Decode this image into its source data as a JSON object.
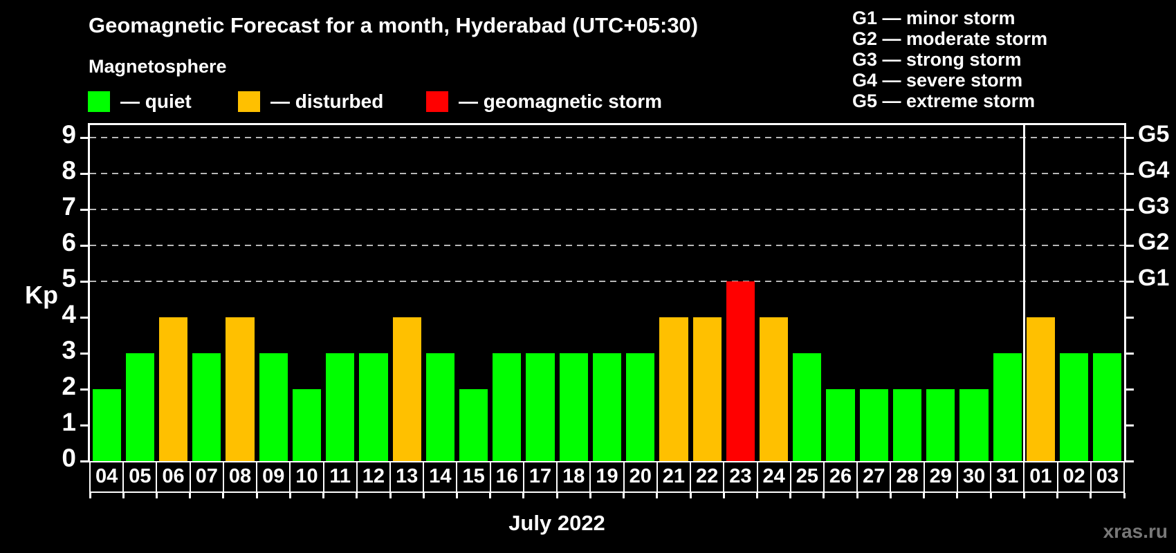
{
  "subtitle": "Magnetosphere",
  "legend": {
    "items": [
      {
        "key": "quiet",
        "label": "— quiet",
        "color": "#00ff00"
      },
      {
        "key": "disturbed",
        "label": "— disturbed",
        "color": "#ffc000"
      },
      {
        "key": "storm",
        "label": "— geomagnetic storm",
        "color": "#ff0000"
      }
    ]
  },
  "storm_scale_legend": [
    "G1 — minor storm",
    "G2 — moderate storm",
    "G3 — strong storm",
    "G4 — severe storm",
    "G5 — extreme storm"
  ],
  "watermark": "xras.ru",
  "chart_data": {
    "type": "bar",
    "title": "Geomagnetic Forecast for a month, Hyderabad (UTC+05:30)",
    "xlabel": "July 2022",
    "ylabel": "Kp",
    "ylim": [
      0,
      9.35
    ],
    "yticks": [
      0,
      1,
      2,
      3,
      4,
      5,
      6,
      7,
      8,
      9
    ],
    "grid_levels": [
      5,
      6,
      7,
      8,
      9
    ],
    "grid": "dashed-horizontal",
    "legend_position": "top",
    "right_axis": {
      "labels": [
        {
          "kp": 5,
          "label": "G1"
        },
        {
          "kp": 6,
          "label": "G2"
        },
        {
          "kp": 7,
          "label": "G3"
        },
        {
          "kp": 8,
          "label": "G4"
        },
        {
          "kp": 9,
          "label": "G5"
        }
      ]
    },
    "categories": [
      "04",
      "05",
      "06",
      "07",
      "08",
      "09",
      "10",
      "11",
      "12",
      "13",
      "14",
      "15",
      "16",
      "17",
      "18",
      "19",
      "20",
      "21",
      "22",
      "23",
      "24",
      "25",
      "26",
      "27",
      "28",
      "29",
      "30",
      "31",
      "01",
      "02",
      "03"
    ],
    "values": [
      2,
      3,
      4,
      3,
      4,
      3,
      2,
      3,
      3,
      4,
      3,
      2,
      3,
      3,
      3,
      3,
      3,
      4,
      4,
      5,
      4,
      3,
      2,
      2,
      2,
      2,
      2,
      3,
      4,
      3,
      3
    ],
    "statuses": [
      "quiet",
      "quiet",
      "disturbed",
      "quiet",
      "disturbed",
      "quiet",
      "quiet",
      "quiet",
      "quiet",
      "disturbed",
      "quiet",
      "quiet",
      "quiet",
      "quiet",
      "quiet",
      "quiet",
      "quiet",
      "disturbed",
      "disturbed",
      "storm",
      "disturbed",
      "quiet",
      "quiet",
      "quiet",
      "quiet",
      "quiet",
      "quiet",
      "quiet",
      "disturbed",
      "quiet",
      "quiet"
    ],
    "colors": {
      "quiet": "#00ff00",
      "disturbed": "#ffc000",
      "storm": "#ff0000"
    },
    "month_separator_after": "31"
  }
}
